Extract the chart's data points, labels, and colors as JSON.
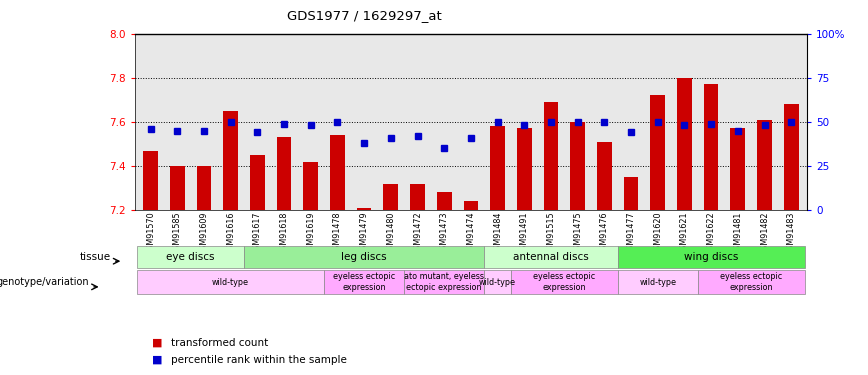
{
  "title": "GDS1977 / 1629297_at",
  "samples": [
    "GSM91570",
    "GSM91585",
    "GSM91609",
    "GSM91616",
    "GSM91617",
    "GSM91618",
    "GSM91619",
    "GSM91478",
    "GSM91479",
    "GSM91480",
    "GSM91472",
    "GSM91473",
    "GSM91474",
    "GSM91484",
    "GSM91491",
    "GSM91515",
    "GSM91475",
    "GSM91476",
    "GSM91477",
    "GSM91620",
    "GSM91621",
    "GSM91622",
    "GSM91481",
    "GSM91482",
    "GSM91483"
  ],
  "bar_values": [
    7.47,
    7.4,
    7.4,
    7.65,
    7.45,
    7.53,
    7.42,
    7.54,
    7.21,
    7.32,
    7.32,
    7.28,
    7.24,
    7.58,
    7.57,
    7.69,
    7.6,
    7.51,
    7.35,
    7.72,
    7.8,
    7.77,
    7.57,
    7.61,
    7.68
  ],
  "percentile_values": [
    46,
    45,
    45,
    50,
    44,
    49,
    48,
    50,
    38,
    41,
    42,
    35,
    41,
    50,
    48,
    50,
    50,
    50,
    44,
    50,
    48,
    49,
    45,
    48,
    50
  ],
  "ylim_left": [
    7.2,
    8.0
  ],
  "ylim_right": [
    0,
    100
  ],
  "yticks_left": [
    7.2,
    7.4,
    7.6,
    7.8,
    8.0
  ],
  "yticks_right": [
    0,
    25,
    50,
    75,
    100
  ],
  "tissue_groups": [
    {
      "label": "eye discs",
      "start": 0,
      "end": 3,
      "color": "#ccffcc"
    },
    {
      "label": "leg discs",
      "start": 4,
      "end": 12,
      "color": "#99ee99"
    },
    {
      "label": "antennal discs",
      "start": 13,
      "end": 17,
      "color": "#ccffcc"
    },
    {
      "label": "wing discs",
      "start": 18,
      "end": 24,
      "color": "#55ee55"
    }
  ],
  "genotype_groups": [
    {
      "label": "wild-type",
      "start": 0,
      "end": 6,
      "color": "#ffccff"
    },
    {
      "label": "eyeless ectopic\nexpression",
      "start": 7,
      "end": 9,
      "color": "#ffaaff"
    },
    {
      "label": "ato mutant, eyeless\nectopic expression",
      "start": 10,
      "end": 12,
      "color": "#ffaaff"
    },
    {
      "label": "wild-type",
      "start": 13,
      "end": 13,
      "color": "#ffccff"
    },
    {
      "label": "eyeless ectopic\nexpression",
      "start": 14,
      "end": 17,
      "color": "#ffaaff"
    },
    {
      "label": "wild-type",
      "start": 18,
      "end": 20,
      "color": "#ffccff"
    },
    {
      "label": "eyeless ectopic\nexpression",
      "start": 21,
      "end": 24,
      "color": "#ffaaff"
    }
  ],
  "bar_color": "#cc0000",
  "percentile_color": "#0000cc",
  "bar_bottom": 7.2,
  "ax_bg_color": "#e8e8e8",
  "legend_items": [
    {
      "label": "transformed count",
      "color": "#cc0000"
    },
    {
      "label": "percentile rank within the sample",
      "color": "#0000cc"
    }
  ]
}
